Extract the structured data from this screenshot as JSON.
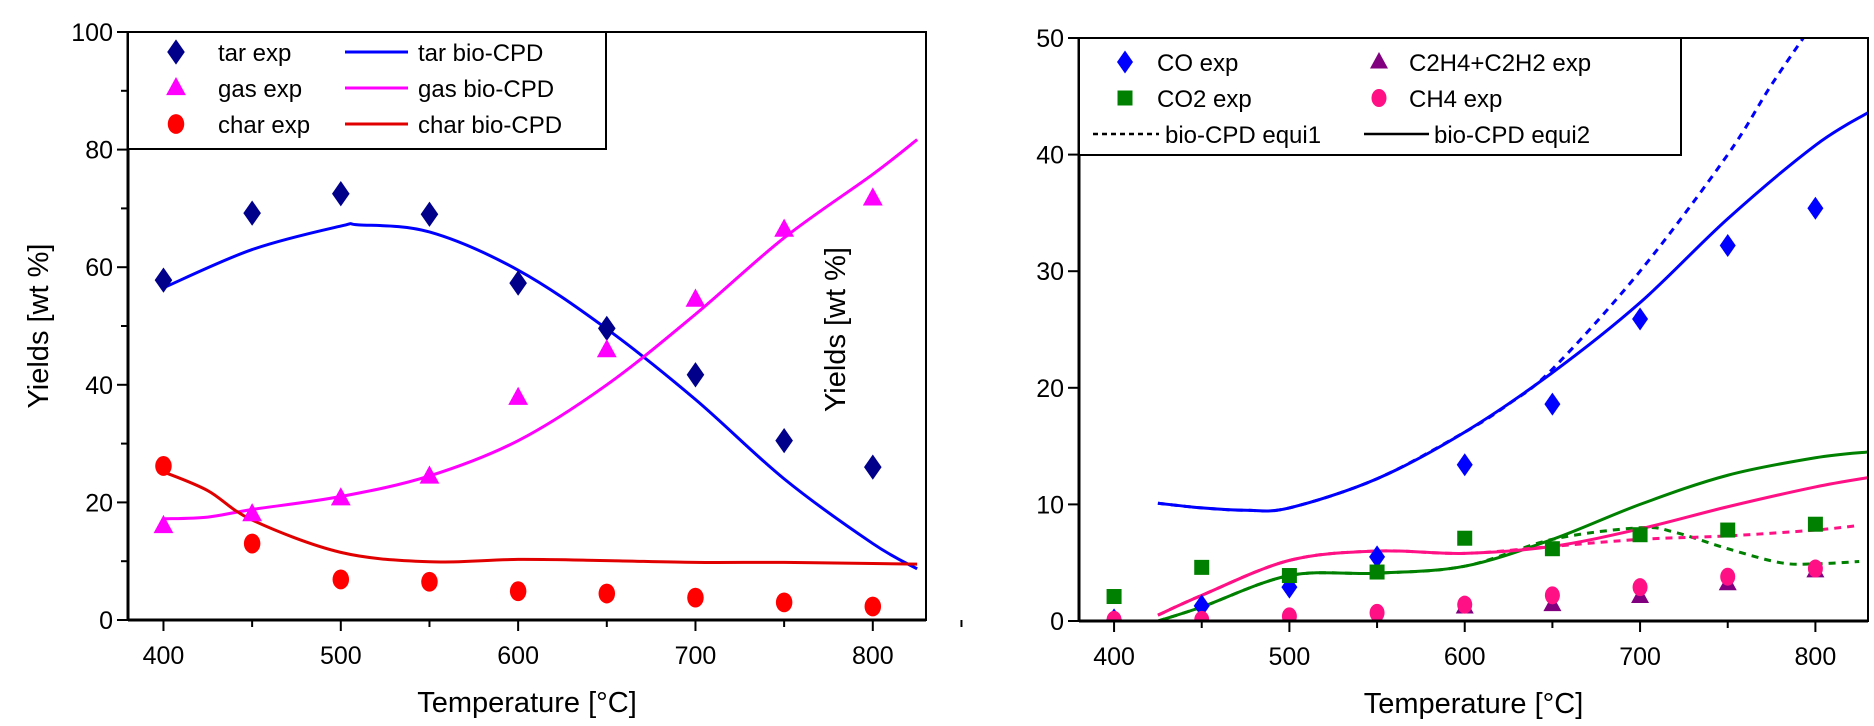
{
  "chart_data": [
    {
      "type": "line",
      "xlabel": "Temperature [°C]",
      "ylabel": "Yields [wt %]",
      "xlim": [
        380,
        830
      ],
      "ylim": [
        0,
        100
      ],
      "xticks": [
        400,
        500,
        600,
        700,
        800
      ],
      "yticks": [
        0,
        20,
        40,
        60,
        80,
        100
      ],
      "grid": false,
      "legend_placement": "top-left",
      "series": [
        {
          "name": "tar exp",
          "kind": "scatter",
          "marker": "diamond",
          "color": "#00008B",
          "x": [
            400,
            450,
            500,
            550,
            600,
            650,
            700,
            750,
            800
          ],
          "y": [
            57.8,
            69.2,
            72.5,
            69.0,
            57.3,
            49.6,
            41.7,
            30.5,
            26.0
          ]
        },
        {
          "name": "gas exp",
          "kind": "scatter",
          "marker": "triangle",
          "color": "#FF00FF",
          "x": [
            400,
            450,
            500,
            550,
            600,
            650,
            700,
            750,
            800
          ],
          "y": [
            16.0,
            18.0,
            20.7,
            24.4,
            37.8,
            45.9,
            54.5,
            66.4,
            71.7
          ]
        },
        {
          "name": "char exp",
          "kind": "scatter",
          "marker": "circle",
          "color": "#FF0000",
          "x": [
            400,
            450,
            500,
            550,
            600,
            650,
            700,
            750,
            800
          ],
          "y": [
            26.2,
            13.0,
            6.9,
            6.5,
            4.9,
            4.5,
            3.8,
            3.0,
            2.3
          ]
        },
        {
          "name": "tar bio-CPD",
          "kind": "line",
          "dash": false,
          "color": "#0000FF",
          "x": [
            400,
            450,
            500,
            510,
            550,
            600,
            650,
            700,
            750,
            800,
            825
          ],
          "y": [
            56.5,
            63.0,
            67.0,
            67.2,
            66.0,
            59.5,
            49.5,
            37.5,
            24.0,
            13.0,
            8.7
          ]
        },
        {
          "name": "gas bio-CPD",
          "kind": "line",
          "dash": false,
          "color": "#FF00FF",
          "x": [
            400,
            425,
            450,
            500,
            550,
            600,
            650,
            700,
            750,
            800,
            825
          ],
          "y": [
            17.2,
            17.5,
            18.8,
            21.0,
            24.5,
            30.5,
            40.0,
            52.0,
            65.0,
            75.8,
            81.7
          ]
        },
        {
          "name": "char bio-CPD",
          "kind": "line",
          "dash": false,
          "color": "#E00000",
          "x": [
            400,
            425,
            450,
            500,
            550,
            600,
            650,
            700,
            750,
            800,
            825
          ],
          "y": [
            25.2,
            22.0,
            17.0,
            11.5,
            9.9,
            10.3,
            10.1,
            9.8,
            9.8,
            9.6,
            9.5
          ]
        }
      ]
    },
    {
      "type": "line",
      "xlabel": "Temperature [°C]",
      "ylabel": "Yields [wt %]",
      "xlim": [
        380,
        830
      ],
      "ylim": [
        0,
        50
      ],
      "xticks": [
        400,
        500,
        600,
        700,
        800
      ],
      "yticks": [
        0,
        10,
        20,
        30,
        40,
        50
      ],
      "grid": false,
      "legend_placement": "top-left",
      "legend_entries": [
        {
          "label": "CO exp",
          "marker": "diamond",
          "color": "#0000FF"
        },
        {
          "label": "C2H4+C2H2 exp",
          "marker": "triangle",
          "color": "#800080"
        },
        {
          "label": "CO2 exp",
          "marker": "square",
          "color": "#008000"
        },
        {
          "label": "CH4 exp",
          "marker": "circle",
          "color": "#FF1085"
        },
        {
          "label": "bio-CPD equi1",
          "marker": "dashed-line",
          "color": "#000000"
        },
        {
          "label": "bio-CPD equi2",
          "marker": "solid-line",
          "color": "#000000"
        }
      ],
      "series": [
        {
          "name": "CO exp",
          "kind": "scatter",
          "marker": "diamond",
          "color": "#0000FF",
          "x": [
            400,
            450,
            500,
            550,
            600,
            650,
            700,
            750,
            800
          ],
          "y": [
            0.1,
            1.3,
            2.9,
            5.5,
            13.4,
            18.6,
            25.9,
            32.2,
            35.4
          ]
        },
        {
          "name": "CO2 exp",
          "kind": "scatter",
          "marker": "square",
          "color": "#008000",
          "x": [
            400,
            450,
            500,
            550,
            600,
            650,
            700,
            750,
            800
          ],
          "y": [
            2.1,
            4.6,
            3.9,
            4.2,
            7.1,
            6.2,
            7.4,
            7.8,
            8.3
          ]
        },
        {
          "name": "C2H4+C2H2 exp",
          "kind": "scatter",
          "marker": "triangle",
          "color": "#800080",
          "x": [
            400,
            450,
            500,
            550,
            600,
            650,
            700,
            750,
            800
          ],
          "y": [
            0.0,
            0.0,
            0.0,
            0.1,
            1.2,
            1.4,
            2.1,
            3.2,
            4.3
          ]
        },
        {
          "name": "CH4 exp",
          "kind": "scatter",
          "marker": "circle",
          "color": "#FF1085",
          "x": [
            400,
            450,
            500,
            550,
            600,
            650,
            700,
            750,
            800
          ],
          "y": [
            0.1,
            0.1,
            0.4,
            0.7,
            1.4,
            2.2,
            2.9,
            3.8,
            4.5
          ]
        },
        {
          "name": "CO bio-CPD equi1",
          "kind": "line",
          "dash": true,
          "color": "#0000FF",
          "x": [
            425,
            450,
            475,
            500,
            550,
            600,
            625,
            650,
            700,
            750,
            775,
            800
          ],
          "y": [
            10.1,
            9.7,
            9.5,
            9.7,
            12.2,
            16.2,
            18.6,
            21.6,
            30.0,
            40.0,
            46.0,
            51.5
          ]
        },
        {
          "name": "CO bio-CPD equi2",
          "kind": "line",
          "dash": false,
          "color": "#0000FF",
          "x": [
            425,
            450,
            475,
            500,
            550,
            600,
            650,
            700,
            750,
            800,
            830
          ],
          "y": [
            10.1,
            9.7,
            9.5,
            9.7,
            12.2,
            16.2,
            21.3,
            27.3,
            34.5,
            40.8,
            43.6
          ]
        },
        {
          "name": "CO2 bio-CPD equi1",
          "kind": "line",
          "dash": true,
          "color": "#008000",
          "x": [
            425,
            450,
            500,
            550,
            600,
            650,
            700,
            720,
            750,
            780,
            800,
            825
          ],
          "y": [
            0.0,
            1.2,
            3.9,
            4.1,
            4.7,
            7.0,
            8.0,
            7.6,
            6.2,
            5.0,
            4.9,
            5.1
          ]
        },
        {
          "name": "CO2 bio-CPD equi2",
          "kind": "line",
          "dash": false,
          "color": "#008000",
          "x": [
            425,
            450,
            500,
            550,
            600,
            650,
            700,
            750,
            800,
            830
          ],
          "y": [
            0.0,
            1.2,
            3.9,
            4.1,
            4.7,
            7.0,
            10.0,
            12.5,
            14.0,
            14.5
          ]
        },
        {
          "name": "CH4 bio-CPD equi1",
          "kind": "line",
          "dash": true,
          "color": "#FF1085",
          "x": [
            425,
            450,
            500,
            550,
            600,
            650,
            700,
            750,
            800,
            825
          ],
          "y": [
            0.5,
            2.2,
            5.2,
            6.0,
            5.8,
            6.4,
            7.0,
            7.3,
            7.8,
            8.2
          ]
        },
        {
          "name": "CH4 bio-CPD equi2",
          "kind": "line",
          "dash": false,
          "color": "#FF1085",
          "x": [
            425,
            450,
            500,
            550,
            600,
            650,
            700,
            750,
            800,
            830
          ],
          "y": [
            0.5,
            2.2,
            5.2,
            6.0,
            5.8,
            6.4,
            7.9,
            9.8,
            11.5,
            12.3
          ]
        },
        {
          "name": "C2H4+C2H2 bio-CPD",
          "kind": "line",
          "dash": false,
          "color": "#800080",
          "x": [
            380,
            830
          ],
          "y": [
            0.0,
            0.0
          ]
        }
      ]
    }
  ]
}
